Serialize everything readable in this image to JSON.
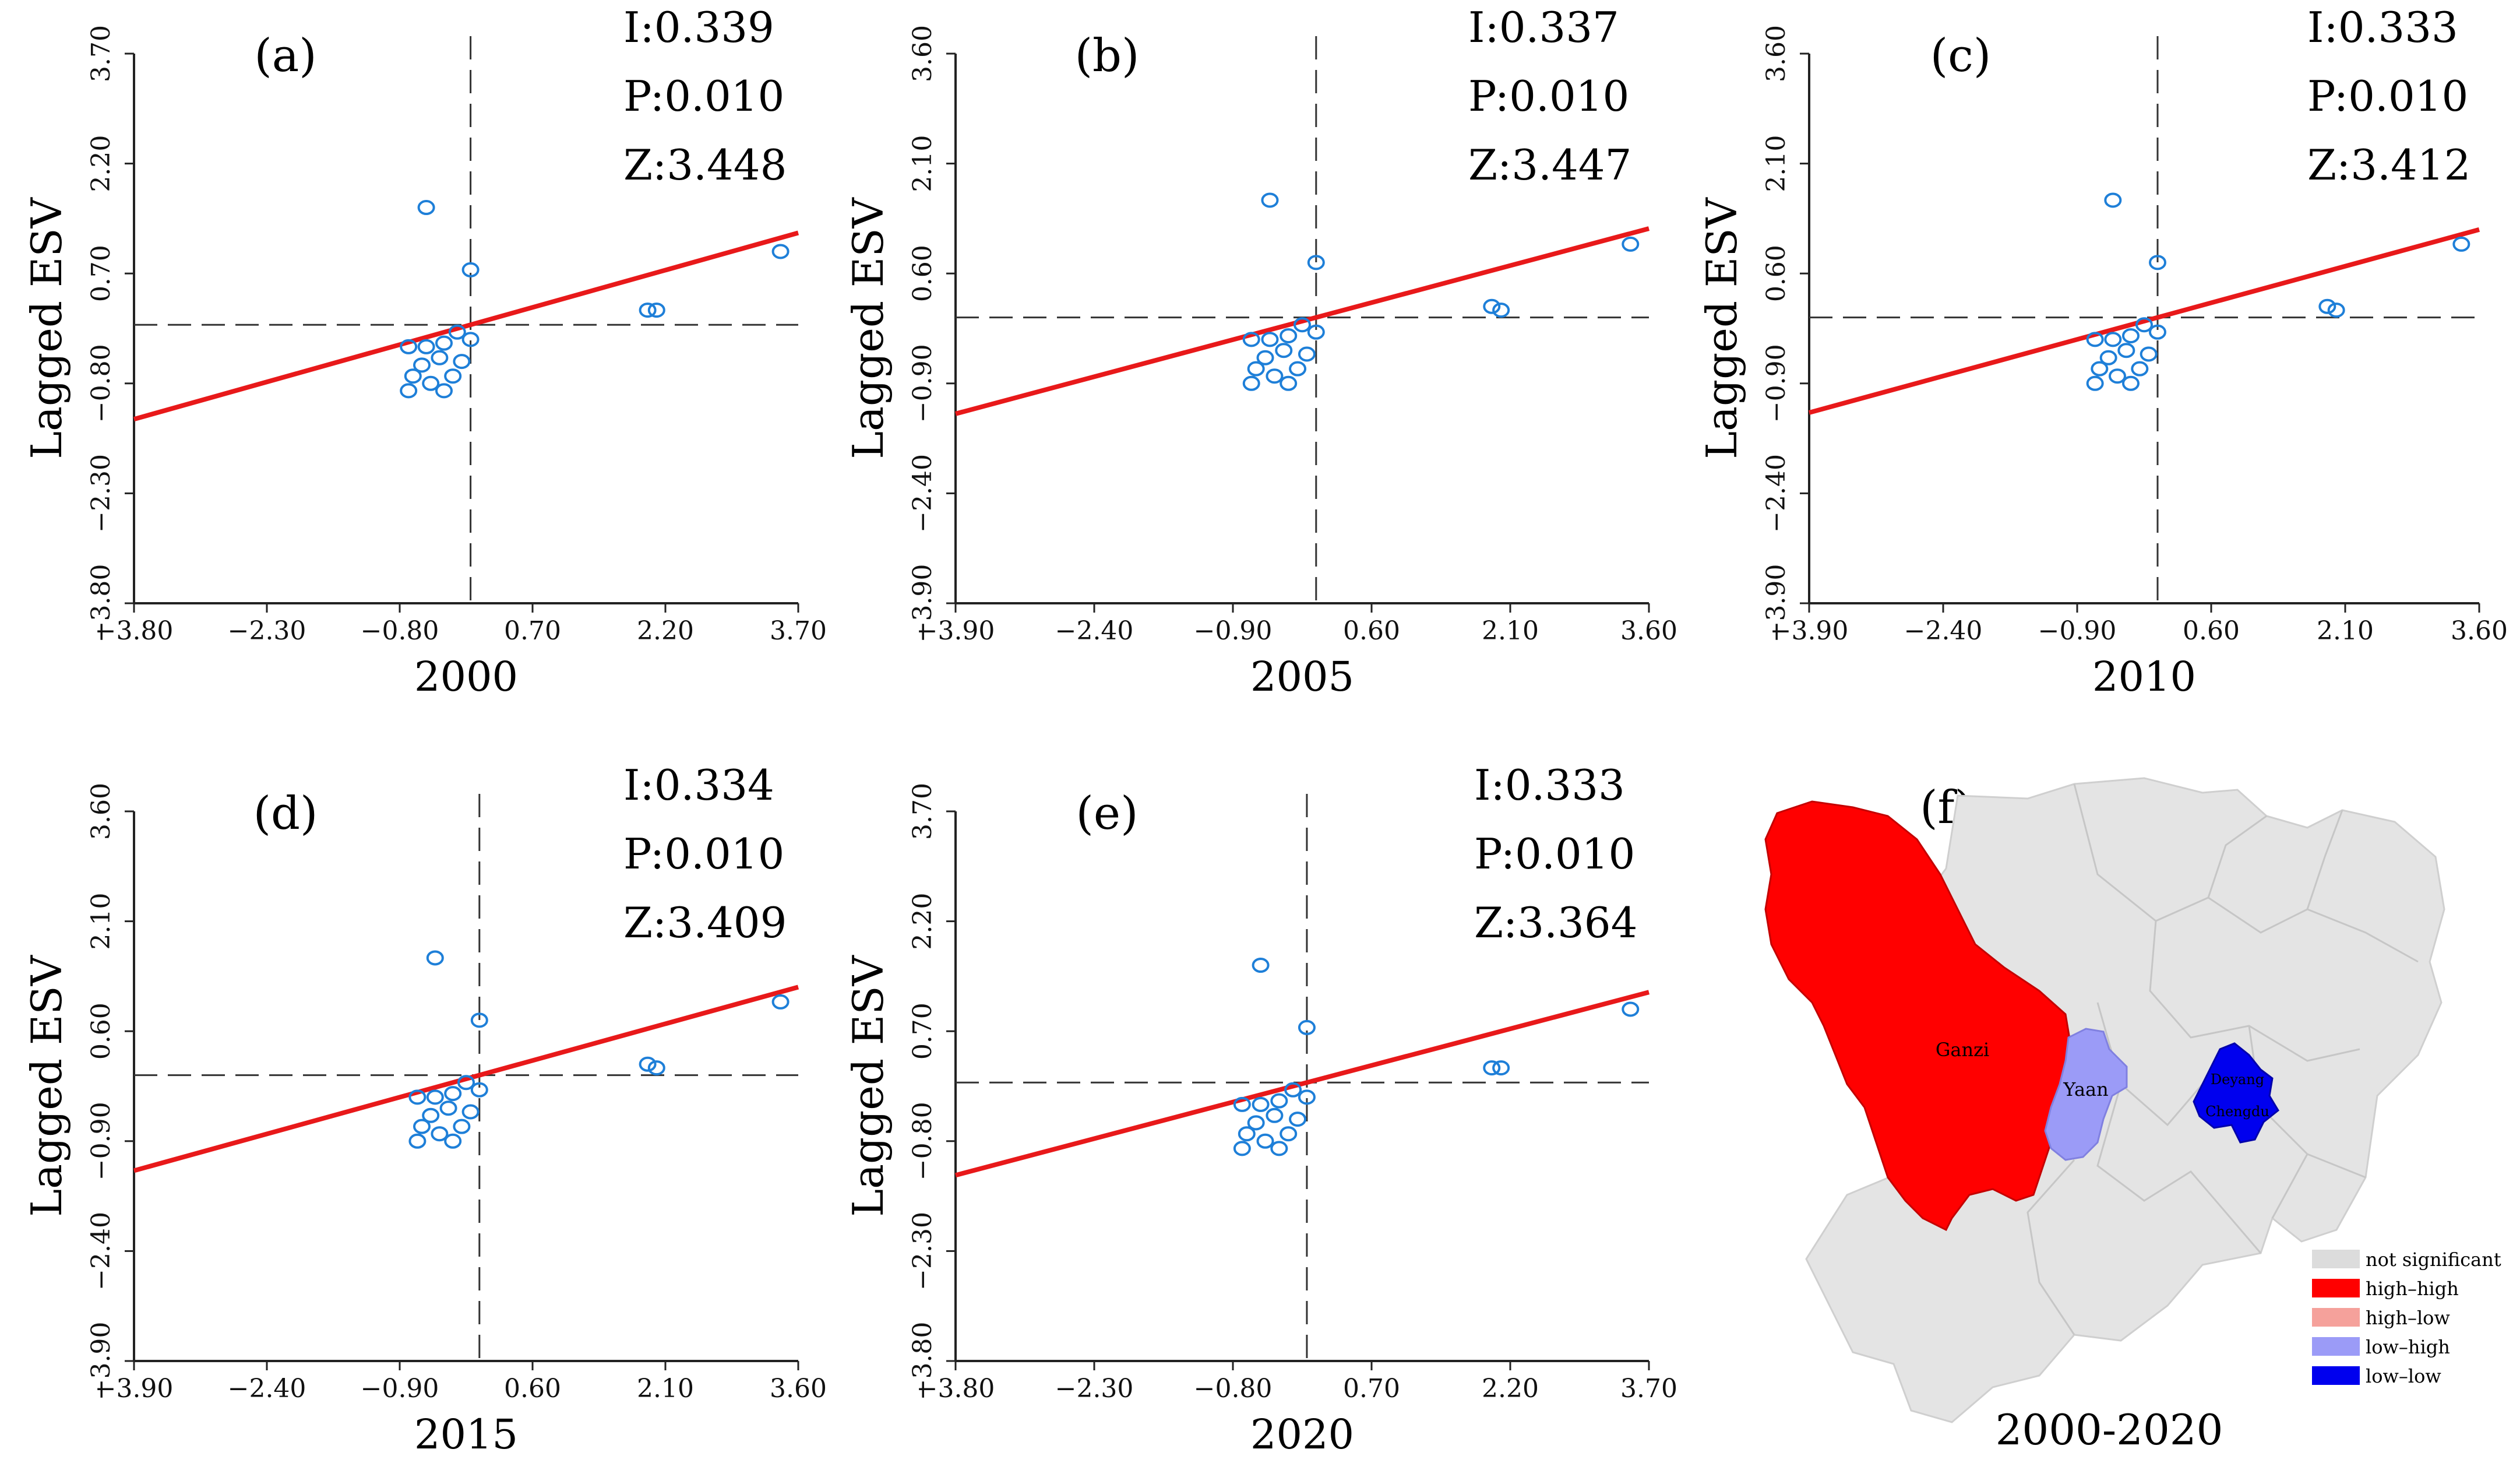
{
  "ylabel": "Lagged ESV",
  "chart_data": [
    {
      "type": "scatter",
      "panel": "(a)",
      "year": "2000",
      "stats": {
        "I": "I:0.339",
        "P": "P:0.010",
        "Z": "Z:3.448"
      },
      "xlim": [
        -3.8,
        3.7
      ],
      "ylim": [
        -3.8,
        3.7
      ],
      "xticks": [
        "-3.80",
        "-2.30",
        "-0.80",
        "0.70",
        "2.20",
        "3.70"
      ],
      "yticks": [
        "-3.80",
        "-2.30",
        "-0.80",
        "0.70",
        "2.20",
        "3.70"
      ],
      "tick_values": [
        -3.8,
        -2.3,
        -0.8,
        0.7,
        2.2,
        3.7
      ],
      "points": [
        [
          -0.5,
          1.6
        ],
        [
          0.0,
          0.75
        ],
        [
          2.0,
          0.2
        ],
        [
          2.1,
          0.2
        ],
        [
          3.5,
          1.0
        ],
        [
          -0.7,
          -0.3
        ],
        [
          -0.5,
          -0.3
        ],
        [
          -0.3,
          -0.25
        ],
        [
          -0.15,
          -0.1
        ],
        [
          -0.35,
          -0.45
        ],
        [
          -0.55,
          -0.55
        ],
        [
          -0.1,
          -0.5
        ],
        [
          -0.65,
          -0.7
        ],
        [
          -0.7,
          -0.9
        ],
        [
          -0.45,
          -0.8
        ],
        [
          -0.3,
          -0.9
        ],
        [
          -0.2,
          -0.7
        ],
        [
          0.0,
          -0.2
        ]
      ],
      "regression": {
        "slope": 0.339,
        "intercept": 0.0
      },
      "ref_lines": {
        "x": 0.0,
        "y": 0.0
      }
    },
    {
      "type": "scatter",
      "panel": "(b)",
      "year": "2005",
      "stats": {
        "I": "I:0.337",
        "P": "P:0.010",
        "Z": "Z:3.447"
      },
      "xlim": [
        -3.9,
        3.6
      ],
      "ylim": [
        -3.9,
        3.6
      ],
      "xticks": [
        "-3.90",
        "-2.40",
        "-0.90",
        "0.60",
        "2.10",
        "3.60"
      ],
      "yticks": [
        "-3.90",
        "-2.40",
        "-0.90",
        "0.60",
        "2.10",
        "3.60"
      ],
      "tick_values": [
        -3.9,
        -2.4,
        -0.9,
        0.6,
        2.1,
        3.6
      ],
      "points": [
        [
          -0.5,
          1.6
        ],
        [
          0.0,
          0.75
        ],
        [
          1.9,
          0.15
        ],
        [
          2.0,
          0.1
        ],
        [
          3.4,
          1.0
        ],
        [
          -0.7,
          -0.3
        ],
        [
          -0.5,
          -0.3
        ],
        [
          -0.3,
          -0.25
        ],
        [
          -0.15,
          -0.1
        ],
        [
          -0.35,
          -0.45
        ],
        [
          -0.55,
          -0.55
        ],
        [
          -0.1,
          -0.5
        ],
        [
          -0.65,
          -0.7
        ],
        [
          -0.7,
          -0.9
        ],
        [
          -0.45,
          -0.8
        ],
        [
          -0.3,
          -0.9
        ],
        [
          -0.2,
          -0.7
        ],
        [
          0.0,
          -0.2
        ]
      ],
      "regression": {
        "slope": 0.337,
        "intercept": 0.0
      },
      "ref_lines": {
        "x": 0.0,
        "y": 0.0
      }
    },
    {
      "type": "scatter",
      "panel": "(c)",
      "year": "2010",
      "stats": {
        "I": "I:0.333",
        "P": "P:0.010",
        "Z": "Z:3.412"
      },
      "xlim": [
        -3.9,
        3.6
      ],
      "ylim": [
        -3.9,
        3.6
      ],
      "xticks": [
        "-3.90",
        "-2.40",
        "-0.90",
        "0.60",
        "2.10",
        "3.60"
      ],
      "yticks": [
        "-3.90",
        "-2.40",
        "-0.90",
        "0.60",
        "2.10",
        "3.60"
      ],
      "tick_values": [
        -3.9,
        -2.4,
        -0.9,
        0.6,
        2.1,
        3.6
      ],
      "points": [
        [
          -0.5,
          1.6
        ],
        [
          0.0,
          0.75
        ],
        [
          1.9,
          0.15
        ],
        [
          2.0,
          0.1
        ],
        [
          3.4,
          1.0
        ],
        [
          -0.7,
          -0.3
        ],
        [
          -0.5,
          -0.3
        ],
        [
          -0.3,
          -0.25
        ],
        [
          -0.15,
          -0.1
        ],
        [
          -0.35,
          -0.45
        ],
        [
          -0.55,
          -0.55
        ],
        [
          -0.1,
          -0.5
        ],
        [
          -0.65,
          -0.7
        ],
        [
          -0.7,
          -0.9
        ],
        [
          -0.45,
          -0.8
        ],
        [
          -0.3,
          -0.9
        ],
        [
          -0.2,
          -0.7
        ],
        [
          0.0,
          -0.2
        ]
      ],
      "regression": {
        "slope": 0.333,
        "intercept": 0.0
      },
      "ref_lines": {
        "x": 0.0,
        "y": 0.0
      }
    },
    {
      "type": "scatter",
      "panel": "(d)",
      "year": "2015",
      "stats": {
        "I": "I:0.334",
        "P": "P:0.010",
        "Z": "Z:3.409"
      },
      "xlim": [
        -3.9,
        3.6
      ],
      "ylim": [
        -3.9,
        3.6
      ],
      "xticks": [
        "-3.90",
        "-2.40",
        "-0.90",
        "0.60",
        "2.10",
        "3.60"
      ],
      "yticks": [
        "-3.90",
        "-2.40",
        "-0.90",
        "0.60",
        "2.10",
        "3.60"
      ],
      "tick_values": [
        -3.9,
        -2.4,
        -0.9,
        0.6,
        2.1,
        3.6
      ],
      "points": [
        [
          -0.5,
          1.6
        ],
        [
          0.0,
          0.75
        ],
        [
          1.9,
          0.15
        ],
        [
          2.0,
          0.1
        ],
        [
          3.4,
          1.0
        ],
        [
          -0.7,
          -0.3
        ],
        [
          -0.5,
          -0.3
        ],
        [
          -0.3,
          -0.25
        ],
        [
          -0.15,
          -0.1
        ],
        [
          -0.35,
          -0.45
        ],
        [
          -0.55,
          -0.55
        ],
        [
          -0.1,
          -0.5
        ],
        [
          -0.65,
          -0.7
        ],
        [
          -0.7,
          -0.9
        ],
        [
          -0.45,
          -0.8
        ],
        [
          -0.3,
          -0.9
        ],
        [
          -0.2,
          -0.7
        ],
        [
          0.0,
          -0.2
        ]
      ],
      "regression": {
        "slope": 0.334,
        "intercept": 0.0
      },
      "ref_lines": {
        "x": 0.0,
        "y": 0.0
      }
    },
    {
      "type": "scatter",
      "panel": "(e)",
      "year": "2020",
      "stats": {
        "I": "I:0.333",
        "P": "P:0.010",
        "Z": "Z:3.364"
      },
      "xlim": [
        -3.8,
        3.7
      ],
      "ylim": [
        -3.8,
        3.7
      ],
      "xticks": [
        "-3.80",
        "-2.30",
        "-0.80",
        "0.70",
        "2.20",
        "3.70"
      ],
      "yticks": [
        "-3.80",
        "-2.30",
        "-0.80",
        "0.70",
        "2.20",
        "3.70"
      ],
      "tick_values": [
        -3.8,
        -2.3,
        -0.8,
        0.7,
        2.2,
        3.7
      ],
      "points": [
        [
          -0.5,
          1.6
        ],
        [
          0.0,
          0.75
        ],
        [
          2.0,
          0.2
        ],
        [
          2.1,
          0.2
        ],
        [
          3.5,
          1.0
        ],
        [
          -0.7,
          -0.3
        ],
        [
          -0.5,
          -0.3
        ],
        [
          -0.3,
          -0.25
        ],
        [
          -0.15,
          -0.1
        ],
        [
          -0.35,
          -0.45
        ],
        [
          -0.55,
          -0.55
        ],
        [
          -0.1,
          -0.5
        ],
        [
          -0.65,
          -0.7
        ],
        [
          -0.7,
          -0.9
        ],
        [
          -0.45,
          -0.8
        ],
        [
          -0.3,
          -0.9
        ],
        [
          -0.2,
          -0.7
        ],
        [
          0.0,
          -0.2
        ]
      ],
      "regression": {
        "slope": 0.333,
        "intercept": 0.0
      },
      "ref_lines": {
        "x": 0.0,
        "y": 0.0
      }
    }
  ],
  "map": {
    "panel": "(f)",
    "period": "2000-2020",
    "regions": [
      {
        "name": "Ganzi",
        "class": "high-high"
      },
      {
        "name": "Yaan",
        "class": "low-high"
      },
      {
        "name": "Chengdu",
        "class": "low-low"
      },
      {
        "name": "Deyang",
        "class": "low-low"
      }
    ],
    "legend": [
      {
        "label": "not significant",
        "color": "#dcdcdc"
      },
      {
        "label": "high–high",
        "color": "#ff0000"
      },
      {
        "label": "high–low",
        "color": "#f5a19b"
      },
      {
        "label": "low–high",
        "color": "#9b9bf7"
      },
      {
        "label": "low–low",
        "color": "#0000ee"
      }
    ]
  },
  "colors": {
    "points": "#1e7fd8",
    "regression": "#e8191a",
    "axes": "#222222"
  }
}
